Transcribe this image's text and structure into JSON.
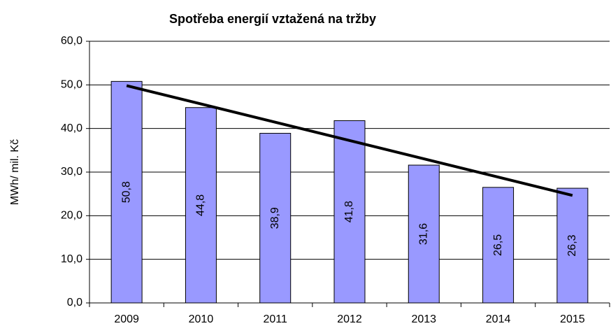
{
  "chart_data": {
    "type": "bar",
    "title": "Spotřeba energií vztažená na tržby",
    "y_label": "MWh/ mil. Kč",
    "categories": [
      "2009",
      "2010",
      "2011",
      "2012",
      "2013",
      "2014",
      "2015"
    ],
    "values": [
      50.8,
      44.8,
      38.9,
      41.8,
      31.6,
      26.5,
      26.3
    ],
    "value_labels": [
      "50,8",
      "44,8",
      "38,9",
      "41,8",
      "31,6",
      "26,5",
      "26,3"
    ],
    "color": "#9999ff",
    "trendline": "linear",
    "ylim": [
      0,
      60
    ],
    "yticks": [
      {
        "value": 0,
        "label": "0,0"
      },
      {
        "value": 10,
        "label": "10,0"
      },
      {
        "value": 20,
        "label": "20,0"
      },
      {
        "value": 30,
        "label": "30,0"
      },
      {
        "value": 40,
        "label": "40,0"
      },
      {
        "value": 50,
        "label": "50,0"
      },
      {
        "value": 60,
        "label": "60,0"
      }
    ],
    "grid": true
  }
}
